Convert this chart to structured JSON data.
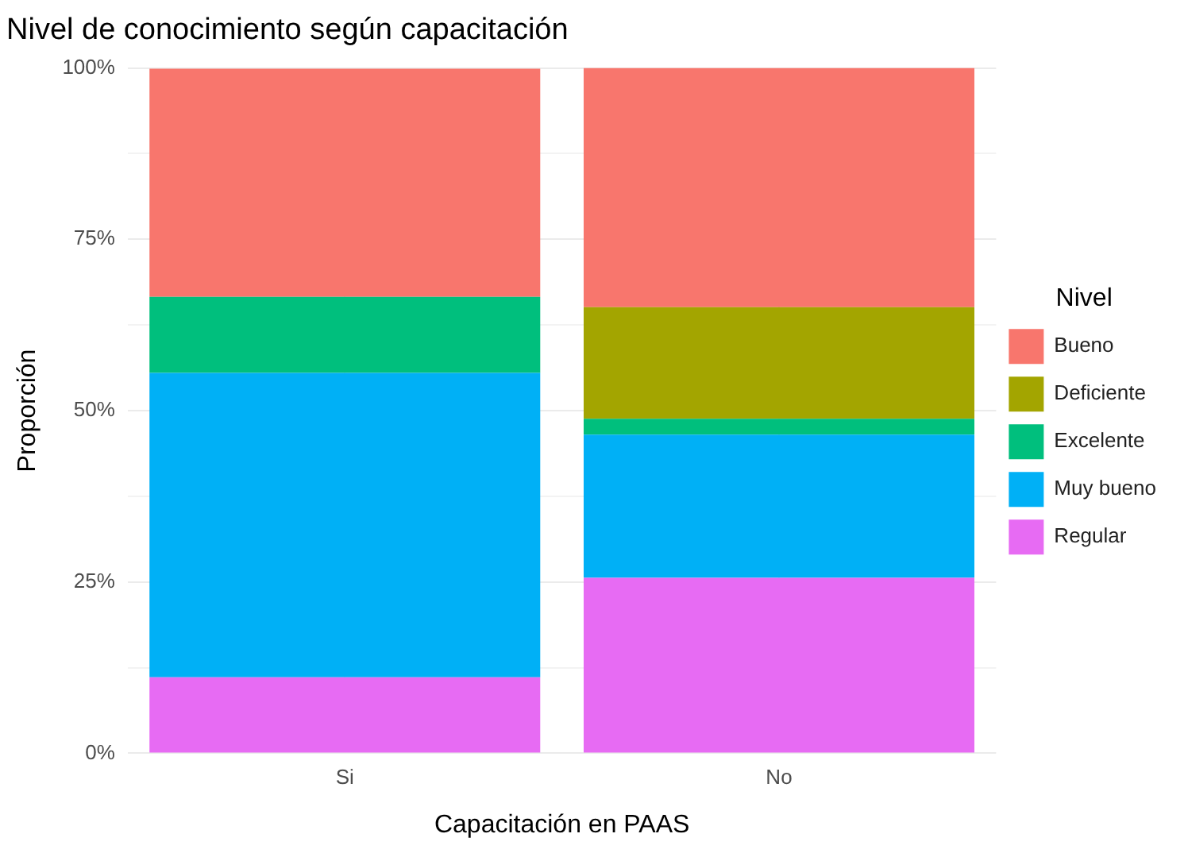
{
  "chart_data": {
    "type": "bar",
    "stacked": true,
    "title": "Nivel de conocimiento según capacitación",
    "xlabel": "Capacitación en PAAS",
    "ylabel": "Proporción",
    "legend_title": "Nivel",
    "legend": "right",
    "grid": true,
    "categories": [
      "Si",
      "No"
    ],
    "ylim": [
      0,
      100
    ],
    "yticks": [
      {
        "value": 0,
        "label": "0%"
      },
      {
        "value": 12.5,
        "label": null
      },
      {
        "value": 25,
        "label": "25%"
      },
      {
        "value": 37.5,
        "label": null
      },
      {
        "value": 50,
        "label": "50%"
      },
      {
        "value": 62.5,
        "label": null
      },
      {
        "value": 75,
        "label": "75%"
      },
      {
        "value": 87.5,
        "label": null
      },
      {
        "value": 100,
        "label": "100%"
      }
    ],
    "series": [
      {
        "name": "Regular",
        "color": "#e76bf3",
        "values": [
          11.1,
          25.6
        ]
      },
      {
        "name": "Muy bueno",
        "color": "#00b0f6",
        "values": [
          44.4,
          20.9
        ]
      },
      {
        "name": "Excelente",
        "color": "#00bf7d",
        "values": [
          11.1,
          2.3
        ]
      },
      {
        "name": "Deficiente",
        "color": "#a3a500",
        "values": [
          0,
          16.3
        ]
      },
      {
        "name": "Bueno",
        "color": "#f8766d",
        "values": [
          33.3,
          34.9
        ]
      }
    ]
  }
}
